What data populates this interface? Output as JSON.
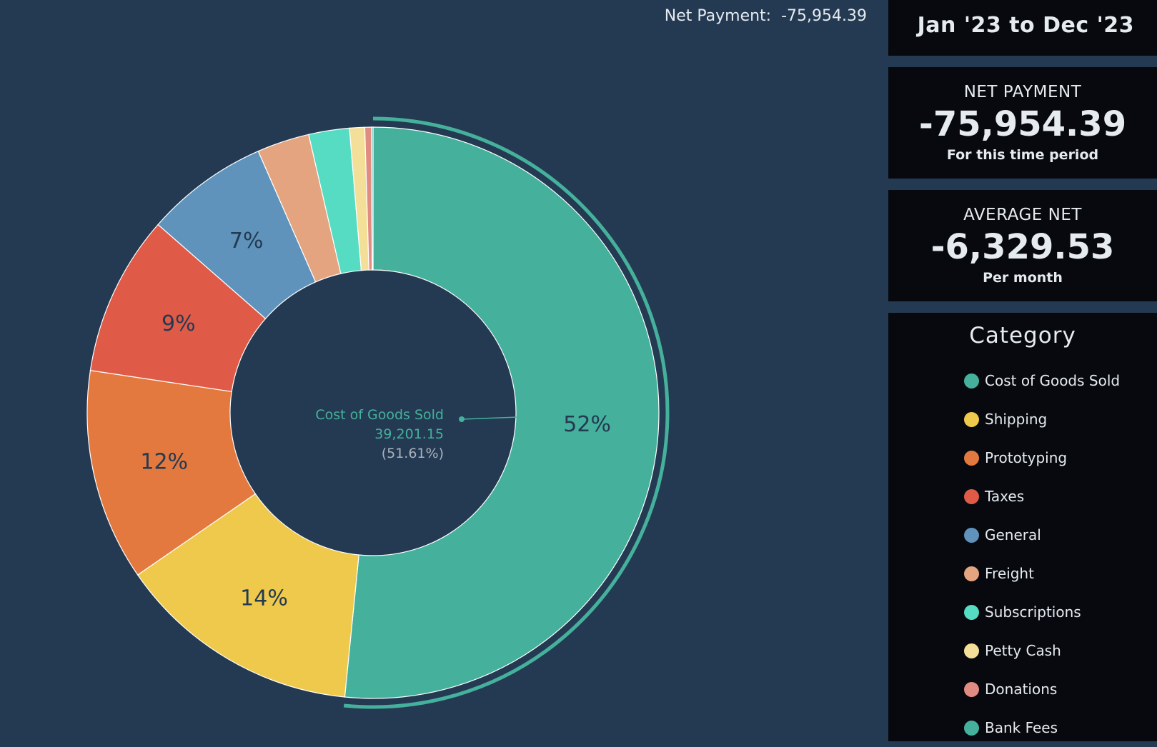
{
  "header": {
    "net_label": "Net Payment:",
    "net_value": "-75,954.39"
  },
  "sidebar": {
    "date_range": "Jan '23 to Dec '23",
    "net_payment": {
      "title": "NET PAYMENT",
      "value": "-75,954.39",
      "subtitle": "For this time period"
    },
    "average_net": {
      "title": "AVERAGE NET",
      "value": "-6,329.53",
      "subtitle": "Per month"
    },
    "legend_title": "Category"
  },
  "tooltip": {
    "category": "Cost of Goods Sold",
    "value": "39,201.15",
    "percent": "(51.61%)"
  },
  "chart_data": {
    "type": "pie",
    "title": "",
    "legend_position": "right",
    "hole": 0.5,
    "highlighted": "Cost of Goods Sold",
    "slices": [
      {
        "name": "Cost of Goods Sold",
        "value": 39201.15,
        "label": "52%",
        "color": "#45b19c"
      },
      {
        "name": "Shipping",
        "value": 10500,
        "label": "14%",
        "color": "#eec94c"
      },
      {
        "name": "Prototyping",
        "value": 9100,
        "label": "12%",
        "color": "#e3793f"
      },
      {
        "name": "Taxes",
        "value": 6900,
        "label": "9%",
        "color": "#e05a48"
      },
      {
        "name": "General",
        "value": 5300,
        "label": "7%",
        "color": "#5f93bb"
      },
      {
        "name": "Freight",
        "value": 2250,
        "label": "",
        "color": "#e4a47f"
      },
      {
        "name": "Subscriptions",
        "value": 1750,
        "label": "",
        "color": "#56dcc3"
      },
      {
        "name": "Petty Cash",
        "value": 650,
        "label": "",
        "color": "#f4df98"
      },
      {
        "name": "Donations",
        "value": 280,
        "label": "",
        "color": "#e08c82"
      },
      {
        "name": "Bank Fees",
        "value": 70,
        "label": "",
        "color": "#45b19c"
      }
    ]
  }
}
